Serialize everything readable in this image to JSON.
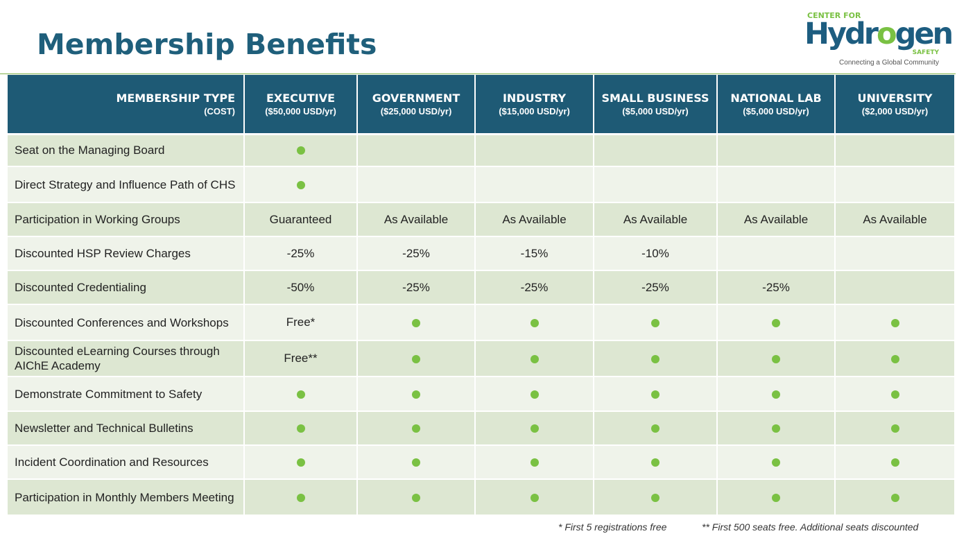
{
  "title": "Membership Benefits",
  "logo": {
    "top": "CENTER FOR",
    "word_a": "Hydr",
    "word_o": "o",
    "word_b": "gen",
    "safety": "SAFETY",
    "tagline": "Connecting a Global Community"
  },
  "colors": {
    "header_bg": "#1e5a75",
    "accent_green": "#7ac143",
    "row_dark": "#dde7d2",
    "row_light": "#eff3ea"
  },
  "header": [
    {
      "name": "MEMBERSHIP TYPE",
      "cost": "(COST)"
    },
    {
      "name": "EXECUTIVE",
      "cost": "($50,000 USD/yr)"
    },
    {
      "name": "GOVERNMENT",
      "cost": "($25,000 USD/yr)"
    },
    {
      "name": "INDUSTRY",
      "cost": "($15,000 USD/yr)"
    },
    {
      "name": "SMALL BUSINESS",
      "cost": "($5,000 USD/yr)"
    },
    {
      "name": "NATIONAL LAB",
      "cost": "($5,000 USD/yr)"
    },
    {
      "name": "UNIVERSITY",
      "cost": "($2,000 USD/yr)"
    }
  ],
  "rows": [
    {
      "label": "Seat on the Managing Board",
      "cells": [
        "dot",
        "",
        "",
        "",
        "",
        ""
      ]
    },
    {
      "label": "Direct Strategy and Influence Path of CHS",
      "cells": [
        "dot",
        "",
        "",
        "",
        "",
        ""
      ]
    },
    {
      "label": "Participation in Working Groups",
      "cells": [
        "Guaranteed",
        "As Available",
        "As Available",
        "As Available",
        "As Available",
        "As Available"
      ]
    },
    {
      "label": "Discounted HSP Review Charges",
      "cells": [
        "-25%",
        "-25%",
        "-15%",
        "-10%",
        "",
        ""
      ]
    },
    {
      "label": "Discounted Credentialing",
      "cells": [
        "-50%",
        "-25%",
        "-25%",
        "-25%",
        "-25%",
        ""
      ]
    },
    {
      "label": "Discounted Conferences and Workshops",
      "cells": [
        "Free*",
        "dot",
        "dot",
        "dot",
        "dot",
        "dot"
      ]
    },
    {
      "label": "Discounted eLearning Courses through AIChE Academy",
      "cells": [
        "Free**",
        "dot",
        "dot",
        "dot",
        "dot",
        "dot"
      ]
    },
    {
      "label": "Demonstrate Commitment to Safety",
      "cells": [
        "dot",
        "dot",
        "dot",
        "dot",
        "dot",
        "dot"
      ]
    },
    {
      "label": "Newsletter and Technical Bulletins",
      "cells": [
        "dot",
        "dot",
        "dot",
        "dot",
        "dot",
        "dot"
      ]
    },
    {
      "label": "Incident Coordination and Resources",
      "cells": [
        "dot",
        "dot",
        "dot",
        "dot",
        "dot",
        "dot"
      ]
    },
    {
      "label": "Participation in Monthly Members Meeting",
      "cells": [
        "dot",
        "dot",
        "dot",
        "dot",
        "dot",
        "dot"
      ]
    }
  ],
  "footnotes": {
    "first": "* First 5 registrations free",
    "second": "** First 500 seats free. Additional seats discounted"
  }
}
